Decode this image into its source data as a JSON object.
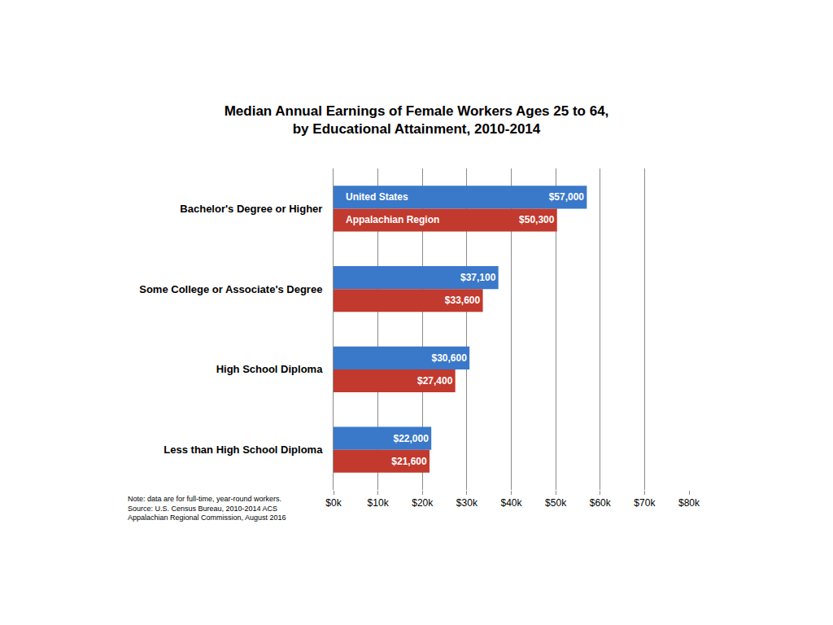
{
  "chart_data": {
    "type": "bar",
    "orientation": "horizontal",
    "title": "Median Annual Earnings of Female Workers Ages 25 to 64,\nby Educational Attainment, 2010-2014",
    "categories": [
      "Bachelor's Degree or Higher",
      "Some College or Associate's Degree",
      "High School Diploma",
      "Less than High School Diploma"
    ],
    "series": [
      {
        "name": "United States",
        "color": "#3a78c9",
        "values": [
          57000,
          37100,
          30600,
          22000
        ],
        "value_labels": [
          "$57,000",
          "$37,100",
          "$30,600",
          "$22,000"
        ]
      },
      {
        "name": "Appalachian Region",
        "color": "#c2392e",
        "values": [
          50300,
          33600,
          27400,
          21600
        ],
        "value_labels": [
          "$50,300",
          "$33,600",
          "$27,400",
          "$21,600"
        ]
      }
    ],
    "xlim": [
      0,
      80000
    ],
    "xticks": [
      {
        "value": 0,
        "label": "$0k"
      },
      {
        "value": 10000,
        "label": "$10k"
      },
      {
        "value": 20000,
        "label": "$20k"
      },
      {
        "value": 30000,
        "label": "$30k"
      },
      {
        "value": 40000,
        "label": "$40k"
      },
      {
        "value": 50000,
        "label": "$50k"
      },
      {
        "value": 60000,
        "label": "$60k"
      },
      {
        "value": 70000,
        "label": "$70k"
      },
      {
        "value": 80000,
        "label": "$80k"
      }
    ],
    "grid": true,
    "data_labels": true,
    "annotations": [
      "Note: data are for full-time, year-round workers.",
      "Source: U.S. Census Bureau, 2010-2014 ACS",
      "Appalachian Regional Commission, August 2016"
    ]
  }
}
